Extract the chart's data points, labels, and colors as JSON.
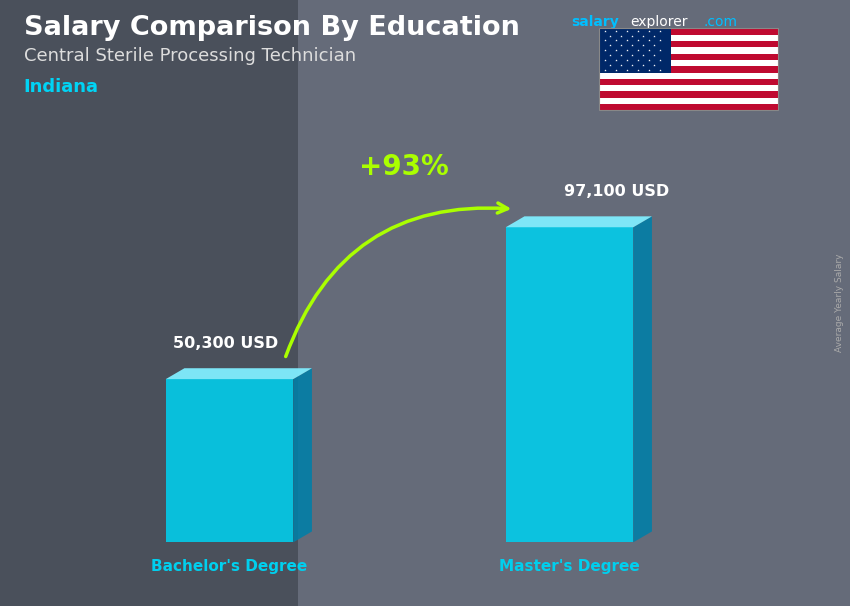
{
  "title": "Salary Comparison By Education",
  "subtitle": "Central Sterile Processing Technician",
  "location": "Indiana",
  "categories": [
    "Bachelor's Degree",
    "Master's Degree"
  ],
  "values": [
    50300,
    97100
  ],
  "value_labels": [
    "50,300 USD",
    "97,100 USD"
  ],
  "pct_change": "+93%",
  "bar_face_color": "#00cfee",
  "bar_side_color": "#007fa8",
  "bar_top_color": "#80eeff",
  "background_color": "#5c6370",
  "title_color": "#ffffff",
  "subtitle_color": "#dddddd",
  "location_color": "#00d4f5",
  "label_color_white": "#ffffff",
  "label_color_cyan": "#00cfee",
  "pct_color": "#aaff00",
  "site_salary_color": "#00bfff",
  "site_explorer_color": "#ffffff",
  "site_com_color": "#00bfff",
  "rotated_label": "Average Yearly Salary",
  "rotated_label_color": "#aaaaaa",
  "xlim": [
    0,
    10
  ],
  "ylim": [
    0,
    10
  ],
  "bar1_x": 2.7,
  "bar2_x": 6.7,
  "bar_width": 1.5,
  "bar_depth_x": 0.22,
  "bar_depth_y": 0.18,
  "bar_bottom": 1.05,
  "max_bar_height": 5.2
}
